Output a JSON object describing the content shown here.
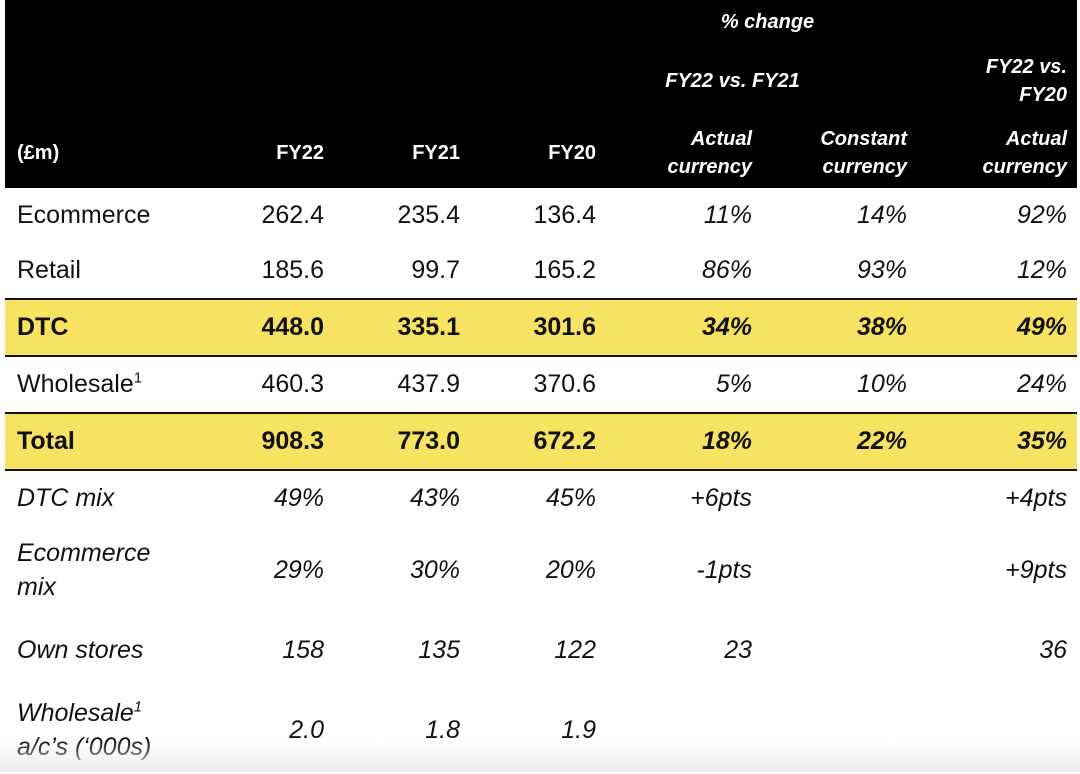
{
  "header": {
    "pct_change": "% change",
    "fy22_vs_fy21": "FY22 vs. FY21",
    "fy22_vs_fy20": "FY22 vs. FY20",
    "unit_label": "(£m)",
    "col_fy22": "FY22",
    "col_fy21": "FY21",
    "col_fy20": "FY20",
    "actual_currency_1": "Actual currency",
    "constant_currency": "Constant currency",
    "actual_currency_2": "Actual currency"
  },
  "rows": [
    {
      "label": "Ecommerce",
      "fy22": "262.4",
      "fy21": "235.4",
      "fy20": "136.4",
      "act21": "11%",
      "const21": "14%",
      "act20": "92%"
    },
    {
      "label": "Retail",
      "fy22": "185.6",
      "fy21": "99.7",
      "fy20": "165.2",
      "act21": "86%",
      "const21": "93%",
      "act20": "12%"
    },
    {
      "label": "DTC",
      "fy22": "448.0",
      "fy21": "335.1",
      "fy20": "301.6",
      "act21": "34%",
      "const21": "38%",
      "act20": "49%"
    },
    {
      "label": "Wholesale",
      "sup": "1",
      "fy22": "460.3",
      "fy21": "437.9",
      "fy20": "370.6",
      "act21": "5%",
      "const21": "10%",
      "act20": "24%"
    },
    {
      "label": "Total",
      "fy22": "908.3",
      "fy21": "773.0",
      "fy20": "672.2",
      "act21": "18%",
      "const21": "22%",
      "act20": "35%"
    },
    {
      "label": "DTC mix",
      "fy22": "49%",
      "fy21": "43%",
      "fy20": "45%",
      "act21": "+6pts",
      "const21": "",
      "act20": "+4pts"
    },
    {
      "label_line1": "Ecommerce",
      "label_line2": "mix",
      "fy22": "29%",
      "fy21": "30%",
      "fy20": "20%",
      "act21": "-1pts",
      "const21": "",
      "act20": "+9pts"
    },
    {
      "label": "Own stores",
      "fy22": "158",
      "fy21": "135",
      "fy20": "122",
      "act21": "23",
      "const21": "",
      "act20": "36"
    },
    {
      "label_line1": "Wholesale",
      "sup": "1",
      "label_line2": "a/c’s (‘000s)",
      "fy22": "2.0",
      "fy21": "1.8",
      "fy20": "1.9",
      "act21": "",
      "const21": "",
      "act20": ""
    }
  ],
  "colors": {
    "header_bg": "#000000",
    "highlight": "#f7e261"
  }
}
